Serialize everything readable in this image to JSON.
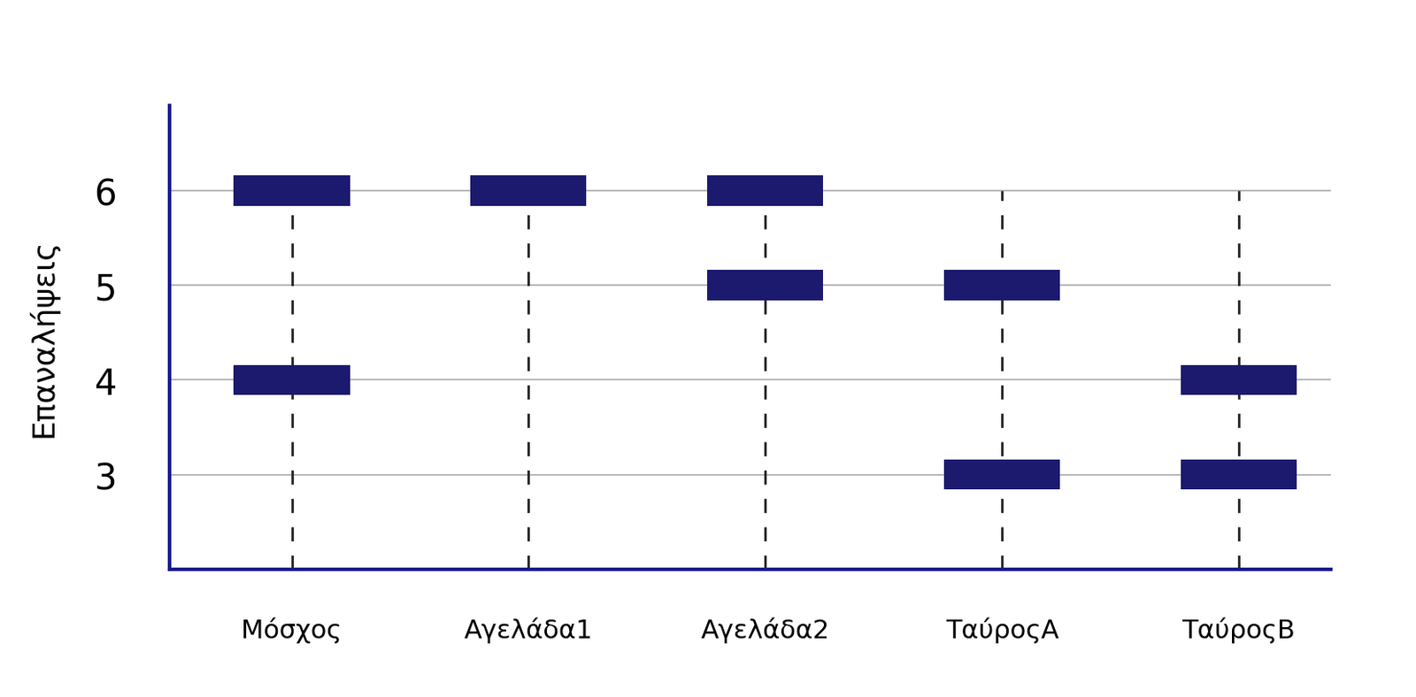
{
  "chart_data": {
    "type": "scatter",
    "marker": "band",
    "categories": [
      "Μόσχος",
      "Αγελάδα1",
      "Αγελάδα2",
      "ΤαύροςA",
      "ΤαύροςB"
    ],
    "values": [
      [
        6,
        4
      ],
      [
        6
      ],
      [
        6,
        5
      ],
      [
        5,
        3
      ],
      [
        4,
        3
      ]
    ],
    "ylabel": "Επαναλήψεις",
    "ylim": [
      2,
      6.9
    ],
    "yticks": [
      3,
      4,
      5,
      6
    ],
    "color": "#1c1a6e",
    "grid": true
  }
}
